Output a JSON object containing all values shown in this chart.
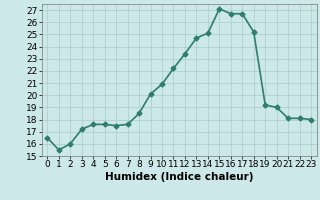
{
  "x": [
    0,
    1,
    2,
    3,
    4,
    5,
    6,
    7,
    8,
    9,
    10,
    11,
    12,
    13,
    14,
    15,
    16,
    17,
    18,
    19,
    20,
    21,
    22,
    23
  ],
  "y": [
    16.5,
    15.5,
    16.0,
    17.2,
    17.6,
    17.6,
    17.5,
    17.6,
    18.5,
    20.1,
    20.9,
    22.2,
    23.4,
    24.7,
    25.1,
    27.1,
    26.7,
    26.7,
    25.2,
    19.2,
    19.0,
    18.1,
    18.1,
    18.0
  ],
  "line_color": "#2e7d6e",
  "marker": "D",
  "marker_size": 2.5,
  "xlabel": "Humidex (Indice chaleur)",
  "xlim": [
    -0.5,
    23.5
  ],
  "ylim": [
    15,
    27.5
  ],
  "yticks": [
    15,
    16,
    17,
    18,
    19,
    20,
    21,
    22,
    23,
    24,
    25,
    26,
    27
  ],
  "xticks": [
    0,
    1,
    2,
    3,
    4,
    5,
    6,
    7,
    8,
    9,
    10,
    11,
    12,
    13,
    14,
    15,
    16,
    17,
    18,
    19,
    20,
    21,
    22,
    23
  ],
  "bg_color": "#cce8e8",
  "grid_color": "#aacccc",
  "line_width": 1.2,
  "font_size": 6.5,
  "xlabel_fontsize": 7.5
}
